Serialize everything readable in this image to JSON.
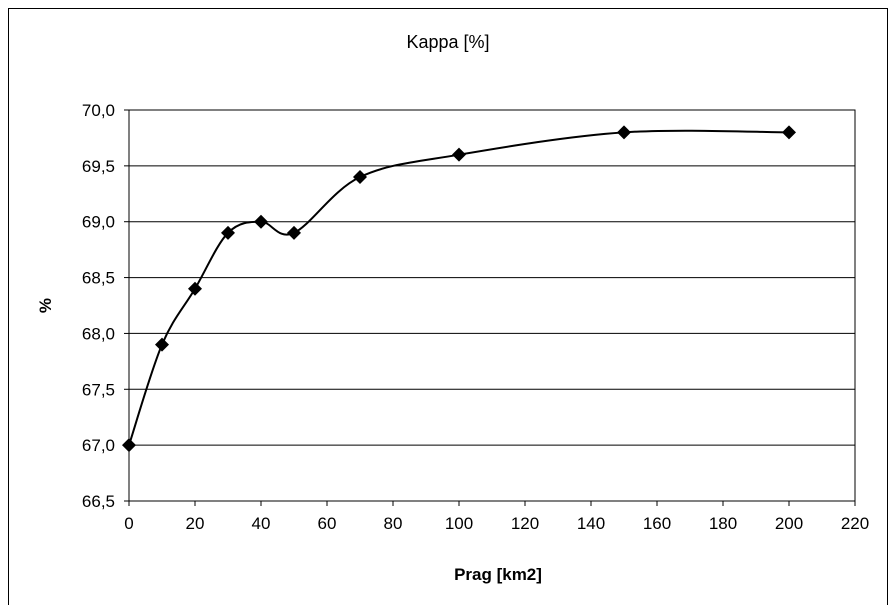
{
  "chart_data": {
    "type": "line",
    "title": "Kappa [%]",
    "xlabel": "Prag [km2]",
    "ylabel": "%",
    "xlim": [
      0,
      220
    ],
    "ylim": [
      66.5,
      70.0
    ],
    "x_ticks": [
      0,
      20,
      40,
      60,
      80,
      100,
      120,
      140,
      160,
      180,
      200,
      220
    ],
    "x_tick_labels": [
      "0",
      "20",
      "40",
      "60",
      "80",
      "100",
      "120",
      "140",
      "160",
      "180",
      "200",
      "220"
    ],
    "y_ticks": [
      66.5,
      67.0,
      67.5,
      68.0,
      68.5,
      69.0,
      69.5,
      70.0
    ],
    "y_tick_labels": [
      "66,5",
      "67,0",
      "67,5",
      "68,0",
      "68,5",
      "69,0",
      "69,5",
      "70,0"
    ],
    "grid": "horizontal",
    "marker": "diamond",
    "smooth": true,
    "series": [
      {
        "x": [
          0,
          10,
          20,
          30,
          40,
          50,
          70,
          100,
          150,
          200
        ],
        "values": [
          67.0,
          67.9,
          68.4,
          68.9,
          69.0,
          68.9,
          69.4,
          69.6,
          69.8,
          69.8
        ]
      }
    ],
    "colors": {
      "line": "#000000",
      "marker": "#000000",
      "grid": "#000000"
    }
  }
}
